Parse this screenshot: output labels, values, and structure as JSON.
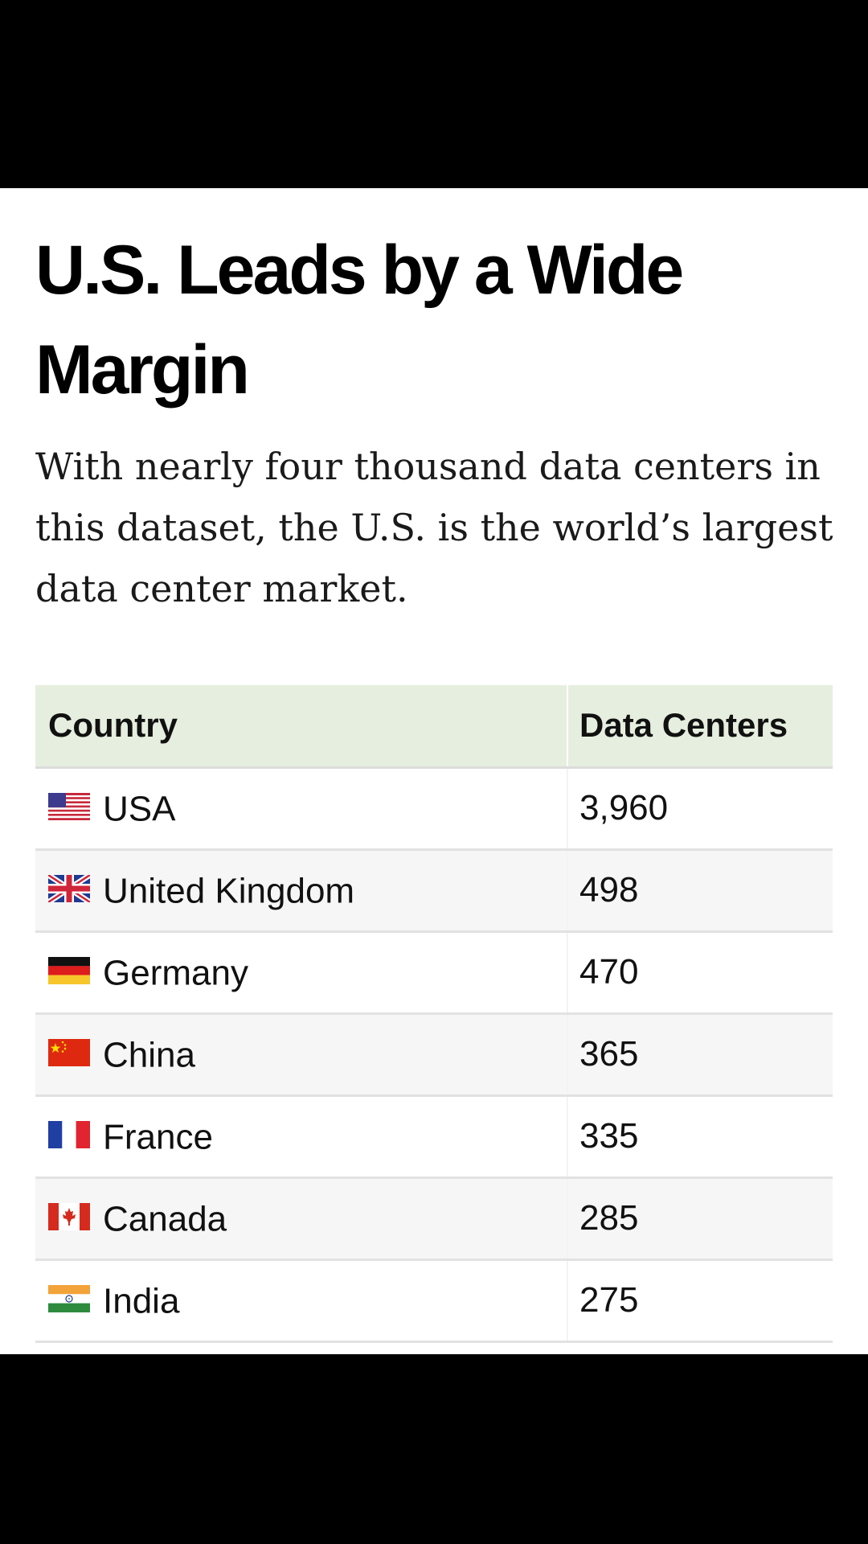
{
  "article": {
    "headline": "U.S. Leads by a Wide Margin",
    "subtitle": "With nearly four thousand data centers in this dataset, the U.S. is the world’s largest data center market."
  },
  "table": {
    "headers": {
      "country": "Country",
      "data_centers": "Data Centers"
    },
    "rows": [
      {
        "flag": "us-flag-icon",
        "country": "USA",
        "count": "3,960"
      },
      {
        "flag": "uk-flag-icon",
        "country": "United Kingdom",
        "count": "498"
      },
      {
        "flag": "germany-flag-icon",
        "country": "Germany",
        "count": "470"
      },
      {
        "flag": "china-flag-icon",
        "country": "China",
        "count": "365"
      },
      {
        "flag": "france-flag-icon",
        "country": "France",
        "count": "335"
      },
      {
        "flag": "canada-flag-icon",
        "country": "Canada",
        "count": "285"
      },
      {
        "flag": "india-flag-icon",
        "country": "India",
        "count": "275"
      }
    ]
  },
  "colors": {
    "header_background": "#e6efdf",
    "page_background": "#ffffff",
    "letterbox": "#000000"
  }
}
